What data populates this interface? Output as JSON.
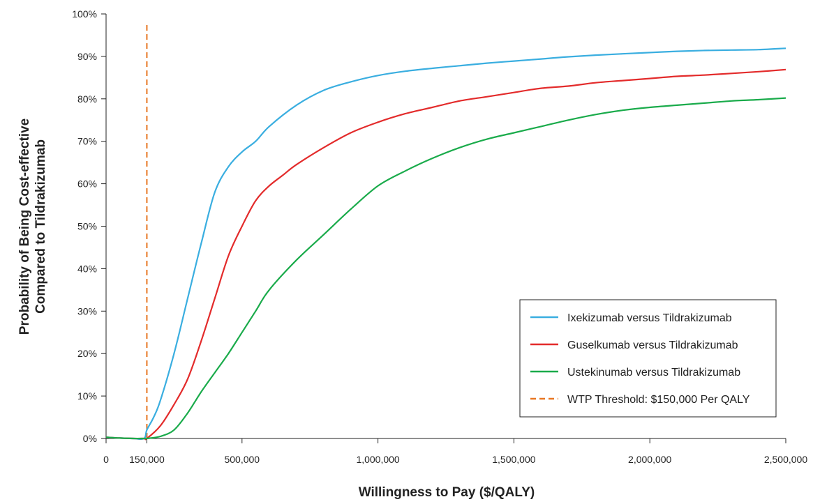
{
  "chart_data": {
    "type": "line",
    "title": "",
    "xlabel": "Willingness to Pay ($/QALY)",
    "ylabel_lines": [
      "Probability of Being Cost-effective",
      "Compared to Tildrakizumab"
    ],
    "xlim": [
      0,
      2500000
    ],
    "ylim": [
      0,
      100
    ],
    "x_ticks": [
      0,
      150000,
      500000,
      1000000,
      1500000,
      2000000,
      2500000
    ],
    "x_tick_labels": [
      "0",
      "150,000",
      "500,000",
      "1,000,000",
      "1,500,000",
      "2,000,000",
      "2,500,000"
    ],
    "y_ticks": [
      0,
      10,
      20,
      30,
      40,
      50,
      60,
      70,
      80,
      90,
      100
    ],
    "y_tick_labels": [
      "0%",
      "10%",
      "20%",
      "30%",
      "40%",
      "50%",
      "60%",
      "70%",
      "80%",
      "90%",
      "100%"
    ],
    "grid": false,
    "legend_position": "bottom-right",
    "series": [
      {
        "name": "Ixekizumab versus Tildrakizumab",
        "color": "#3aaee0",
        "style": "solid",
        "x": [
          0,
          50000,
          100000,
          140000,
          150000,
          175000,
          200000,
          250000,
          300000,
          350000,
          400000,
          450000,
          500000,
          550000,
          600000,
          700000,
          800000,
          900000,
          1000000,
          1100000,
          1200000,
          1300000,
          1400000,
          1500000,
          1600000,
          1700000,
          1800000,
          1900000,
          2000000,
          2100000,
          2200000,
          2300000,
          2400000,
          2500000
        ],
        "y": [
          0.3,
          0.1,
          0,
          0,
          2,
          5,
          9,
          20,
          33,
          46,
          58,
          64,
          67.5,
          70,
          73.5,
          78.5,
          82,
          84,
          85.5,
          86.5,
          87.2,
          87.8,
          88.4,
          88.9,
          89.4,
          89.9,
          90.3,
          90.6,
          90.9,
          91.2,
          91.4,
          91.5,
          91.6,
          91.9
        ]
      },
      {
        "name": "Guselkumab versus Tildrakizumab",
        "color": "#e32b2b",
        "style": "solid",
        "x": [
          0,
          50000,
          100000,
          140000,
          150000,
          200000,
          250000,
          300000,
          350000,
          400000,
          450000,
          500000,
          550000,
          600000,
          650000,
          700000,
          800000,
          900000,
          1000000,
          1100000,
          1200000,
          1300000,
          1400000,
          1500000,
          1600000,
          1700000,
          1800000,
          1900000,
          2000000,
          2100000,
          2200000,
          2300000,
          2400000,
          2500000
        ],
        "y": [
          0.3,
          0.1,
          0,
          0,
          0,
          3,
          8,
          14,
          23,
          33,
          43,
          50,
          56,
          59.5,
          62,
          64.5,
          68.5,
          72,
          74.5,
          76.5,
          78,
          79.5,
          80.5,
          81.5,
          82.5,
          83,
          83.8,
          84.3,
          84.8,
          85.3,
          85.6,
          86,
          86.4,
          86.9
        ]
      },
      {
        "name": "Ustekinumab versus Tildrakizumab",
        "color": "#1aab4b",
        "style": "solid",
        "x": [
          0,
          50000,
          100000,
          140000,
          150000,
          200000,
          250000,
          300000,
          350000,
          400000,
          450000,
          500000,
          550000,
          600000,
          700000,
          800000,
          900000,
          1000000,
          1100000,
          1200000,
          1300000,
          1400000,
          1500000,
          1600000,
          1700000,
          1800000,
          1900000,
          2000000,
          2100000,
          2200000,
          2300000,
          2400000,
          2500000
        ],
        "y": [
          0.3,
          0.1,
          0,
          0,
          0,
          0.5,
          2,
          6,
          11,
          15.5,
          20,
          25,
          30,
          35,
          42,
          48,
          54,
          59.5,
          63,
          66,
          68.5,
          70.5,
          72,
          73.5,
          75,
          76.3,
          77.3,
          78,
          78.5,
          79,
          79.5,
          79.8,
          80.2
        ]
      }
    ],
    "threshold": {
      "name": "WTP Threshold: $150,000 Per QALY",
      "x": 150000,
      "y_range": [
        0,
        98
      ],
      "color": "#e87722",
      "style": "dashed"
    }
  }
}
